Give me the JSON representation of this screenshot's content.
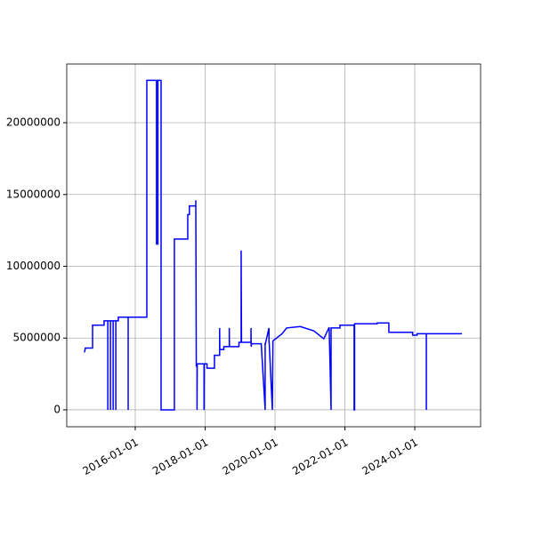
{
  "chart_data": {
    "type": "line",
    "x": [
      "2014-07-20",
      "2014-07-28",
      "2014-10-12",
      "2014-10-12",
      "2015-02-09",
      "2015-02-09",
      "2015-03-20",
      "2015-03-20",
      "2015-03-20",
      "2015-04-17",
      "2015-04-17",
      "2015-04-17",
      "2015-05-15",
      "2015-05-15",
      "2015-05-15",
      "2015-06-12",
      "2015-06-12",
      "2015-06-12",
      "2015-07-08",
      "2015-07-08",
      "2015-10-19",
      "2015-10-19",
      "2015-10-19",
      "2016-05-01",
      "2016-05-01",
      "2016-08-10",
      "2016-08-10",
      "2016-08-10",
      "2016-08-25",
      "2016-08-25",
      "2016-08-25",
      "2016-09-27",
      "2016-09-27",
      "2017-02-13",
      "2017-02-13",
      "2017-07-03",
      "2017-07-03",
      "2017-07-20",
      "2017-07-20",
      "2017-09-25",
      "2017-09-25",
      "2017-09-30",
      "2017-09-30",
      "2017-10-08",
      "2017-10-08",
      "2017-10-10",
      "2017-12-20",
      "2017-12-20",
      "2017-12-22",
      "2018-01-20",
      "2018-01-20",
      "2018-04-08",
      "2018-04-08",
      "2018-06-01",
      "2018-06-01",
      "2018-06-03",
      "2018-07-15",
      "2018-07-15",
      "2018-09-10",
      "2018-09-10",
      "2018-09-12",
      "2018-12-20",
      "2018-12-20",
      "2019-01-12",
      "2019-01-12",
      "2019-01-16",
      "2019-04-25",
      "2019-04-25",
      "2019-04-27",
      "2019-05-01",
      "2019-08-10",
      "2019-08-10",
      "2019-09-20",
      "2019-09-20",
      "2019-09-22",
      "2019-10-30",
      "2019-10-30",
      "2019-11-01",
      "2019-12-04",
      "2019-12-04",
      "2019-12-10",
      "2019-12-10",
      "2020-03-15",
      "2020-03-15",
      "2020-05-01",
      "2020-05-01",
      "2020-09-20",
      "2020-09-20",
      "2021-02-10",
      "2021-02-10",
      "2021-05-25",
      "2021-05-25",
      "2021-07-20",
      "2021-07-20",
      "2021-08-09",
      "2021-08-09",
      "2021-08-25",
      "2021-08-25",
      "2021-11-10",
      "2021-11-10",
      "2022-04-07",
      "2022-04-07",
      "2022-04-12",
      "2022-04-12",
      "2022-12-05",
      "2022-12-05",
      "2023-04-05",
      "2023-04-05",
      "2023-12-10",
      "2023-12-10",
      "2024-01-25",
      "2024-01-25",
      "2024-05-01",
      "2024-05-01",
      "2024-05-01",
      "2025-05-08"
    ],
    "series": [
      {
        "color": "#0000ff",
        "values": [
          4000000,
          4300000,
          4300000,
          5900000,
          5900000,
          6200000,
          6200000,
          0,
          6200000,
          6200000,
          0,
          6200000,
          6200000,
          0,
          6200000,
          6200000,
          0,
          6200000,
          6200000,
          6450000,
          6450000,
          0,
          6450000,
          6450000,
          22950000,
          22950000,
          11500000,
          22950000,
          22950000,
          11500000,
          22950000,
          22950000,
          0,
          0,
          11900000,
          11900000,
          13600000,
          13600000,
          14200000,
          14200000,
          14600000,
          3000000,
          3200000,
          3200000,
          0,
          3200000,
          3200000,
          0,
          3200000,
          3200000,
          2900000,
          2900000,
          3800000,
          3800000,
          5700000,
          4200000,
          4200000,
          4400000,
          4400000,
          5700000,
          4400000,
          4400000,
          4700000,
          4700000,
          11100000,
          4700000,
          4700000,
          5700000,
          4400000,
          4600000,
          4600000,
          4600000,
          0,
          4600000,
          4600000,
          5700000,
          4700000,
          4700000,
          0,
          0,
          4800000,
          4800000,
          5300000,
          5300000,
          5700000,
          5700000,
          5800000,
          5800000,
          5500000,
          5500000,
          4950000,
          4950000,
          5750000,
          5750000,
          0,
          5700000,
          5700000,
          5700000,
          5700000,
          5900000,
          5900000,
          0,
          0,
          6000000,
          6000000,
          6050000,
          6050000,
          5400000,
          5400000,
          5200000,
          5200000,
          5300000,
          5300000,
          0,
          5300000,
          5300000
        ]
      }
    ],
    "xlim": [
      "2014-01-15",
      "2025-11-19"
    ],
    "xticks": [
      "2016-01-01",
      "2018-01-01",
      "2020-01-01",
      "2022-01-01",
      "2024-01-01"
    ],
    "ylim": [
      -1180000,
      24090000
    ],
    "yticks": [
      0,
      5000000,
      10000000,
      15000000,
      20000000
    ],
    "grid": true
  }
}
